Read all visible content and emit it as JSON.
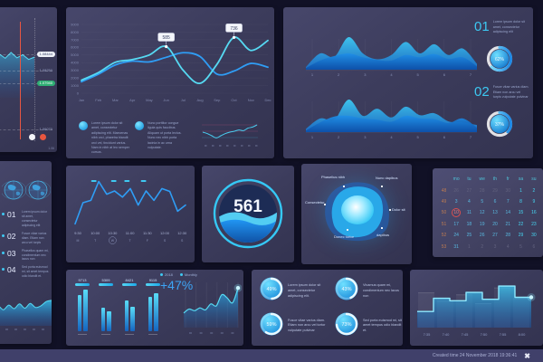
{
  "footer": {
    "text": "Created time 24 November 2018 19:36:41",
    "logo": "✖"
  },
  "panels": {
    "forex": {
      "prices": [
        {
          "label": "1.08444",
          "type": "pill-light",
          "y": 52
        },
        {
          "label": "1.08250",
          "type": "text",
          "y": 70
        },
        {
          "label": "1.07940",
          "type": "pill-green",
          "y": 84
        },
        {
          "label": "1.06070",
          "type": "text",
          "y": 135
        }
      ],
      "corner_label": "1.06"
    },
    "main": {
      "legends": [
        {
          "text": "Lorem ipsum dolor sit amet, consectetur adipiscing elit. Maecenas nibh orci, pharetra blandit orci vel, tincidunt varius. Nam in nibh at leo semper cursus."
        },
        {
          "text": "Nunc porttitor congue ligula quis faucibus. Aliquam ut porta lectus. Nunc nec nibh porta lacinia in ac urna vulputate."
        }
      ]
    },
    "hills": {
      "items": [
        {
          "num": "01",
          "text": "Lorem ipsum dolor sit amet, consectetur adipiscing elit",
          "pct": "62%"
        },
        {
          "num": "02",
          "text": "Fusce vitae varius diam. Etiam non arcu vel turpis vulputate pulvinar",
          "pct": "37%"
        }
      ]
    },
    "left": {
      "items": [
        {
          "num": "01",
          "text": "Lorem ipsum dolor sit amet, consectetur adipiscing elit"
        },
        {
          "num": "02",
          "text": "Fusce vitae varius diam. Etiam non arcu vel turpis"
        },
        {
          "num": "03",
          "text": "Phasellus quam mi, condimentum nec lacus non"
        },
        {
          "num": "04",
          "text": "Sed porta euismod mi, sit amet tempus odio blandit et."
        }
      ]
    },
    "gauge": {
      "value": "561"
    },
    "blob": {
      "labels": [
        {
          "text": "Phasellus nibh",
          "pos": "tl"
        },
        {
          "text": "Nunc dapibus",
          "pos": "tr"
        },
        {
          "text": "Consectetur",
          "pos": "l"
        },
        {
          "text": "Dolor sit",
          "pos": "r"
        },
        {
          "text": "Donec tortor",
          "pos": "bl"
        },
        {
          "text": "dapibus",
          "pos": "br"
        }
      ]
    },
    "calendar": {
      "headers": [
        "mo",
        "tu",
        "we",
        "th",
        "fr",
        "sa",
        "su"
      ],
      "weeks": [
        {
          "num": "48",
          "days": [
            "26",
            "27",
            "28",
            "29",
            "30",
            "1",
            "2"
          ],
          "muted": [
            1,
            1,
            1,
            1,
            1,
            0,
            0
          ]
        },
        {
          "num": "49",
          "days": [
            "3",
            "4",
            "5",
            "6",
            "7",
            "8",
            "9"
          ],
          "muted": [
            0,
            0,
            0,
            0,
            0,
            0,
            0
          ]
        },
        {
          "num": "50",
          "days": [
            "10",
            "11",
            "12",
            "13",
            "14",
            "15",
            "16"
          ],
          "muted": [
            0,
            0,
            0,
            0,
            0,
            0,
            0
          ]
        },
        {
          "num": "51",
          "days": [
            "17",
            "18",
            "19",
            "20",
            "21",
            "22",
            "23"
          ],
          "muted": [
            0,
            0,
            0,
            0,
            0,
            0,
            0
          ]
        },
        {
          "num": "52",
          "days": [
            "24",
            "25",
            "26",
            "27",
            "28",
            "29",
            "30"
          ],
          "muted": [
            0,
            0,
            0,
            0,
            0,
            0,
            0
          ]
        },
        {
          "num": "53",
          "days": [
            "31",
            "1",
            "2",
            "3",
            "4",
            "5",
            "6"
          ],
          "muted": [
            0,
            1,
            1,
            1,
            1,
            1,
            1
          ]
        }
      ],
      "selected_day": "10"
    },
    "bars47": {
      "legend": [
        "2018",
        "Monthly"
      ],
      "delta": "+47%",
      "groups": [
        {
          "label": "9713"
        },
        {
          "label": "5309"
        },
        {
          "label": "8421"
        },
        {
          "label": "9115"
        }
      ]
    },
    "rings": {
      "items": [
        {
          "pct": "49%",
          "text": "Lorem ipsum dolor sit amet, consectetur adipiscing elit."
        },
        {
          "pct": "43%",
          "text": "Vivamus quam mi, condimentum nec lacus non"
        },
        {
          "pct": "59%",
          "text": "Fusce vitae varius diam. Etiam non arcu vel tortor vulputate pulvinar"
        },
        {
          "pct": "73%",
          "text": "Sed porta euismod mi, sit amet tempus odio blandit et."
        }
      ]
    },
    "time": {
      "xticks": [
        "9:30",
        "10:00",
        "10:30",
        "11:00",
        "11:30",
        "12:00",
        "12:30"
      ],
      "days": [
        "M",
        "T",
        "W",
        "T",
        "F",
        "S",
        "S"
      ],
      "circled_index": 2
    },
    "steps": {
      "xticks": [
        "7:35",
        "7:40",
        "7:45",
        "7:50",
        "7:55",
        "8:00"
      ]
    }
  },
  "chart_data": [
    {
      "id": "main-line",
      "type": "line",
      "title": "",
      "x": [
        "Jan",
        "Feb",
        "Mar",
        "Apr",
        "May",
        "Jun",
        "Jul",
        "Aug",
        "Sep",
        "Oct",
        "Nov",
        "Dec"
      ],
      "ylim": [
        0,
        9000
      ],
      "yticks": [
        0,
        1000,
        2000,
        3000,
        4000,
        5000,
        6000,
        7000,
        8000,
        9000
      ],
      "grid": true,
      "series": [
        {
          "name": "series-a",
          "color": "#56d9f2",
          "values": [
            1700,
            2700,
            4050,
            4400,
            5000,
            6100,
            3000,
            1300,
            3800,
            7300,
            5600,
            6900
          ]
        },
        {
          "name": "series-b",
          "color": "#2f9df5",
          "values": [
            1500,
            2500,
            3700,
            4200,
            4100,
            4700,
            5300,
            4800,
            2500,
            2900,
            3900,
            3400
          ]
        }
      ],
      "annotations": [
        {
          "x": "Jun",
          "value": "585"
        },
        {
          "x": "Oct",
          "value": "736"
        }
      ]
    },
    {
      "id": "hills-top",
      "type": "area",
      "x": [
        1,
        2,
        3,
        4,
        5,
        6,
        7
      ],
      "series": [
        {
          "name": "back",
          "values": [
            0.08,
            0.5,
            0.4,
            1.0,
            0.5,
            0.32,
            0.45,
            0.85,
            0.5,
            0.78,
            0.45,
            0.65,
            0.18
          ]
        },
        {
          "name": "front",
          "values": [
            0.05,
            0.28,
            0.42,
            0.5,
            0.38,
            0.3,
            0.28,
            0.45,
            0.38,
            0.48,
            0.33,
            0.38,
            0.1
          ]
        }
      ]
    },
    {
      "id": "hills-bottom",
      "type": "area",
      "x": [
        1,
        2,
        3,
        4,
        5,
        6,
        7
      ],
      "series": [
        {
          "name": "back",
          "values": [
            0.1,
            0.42,
            0.38,
            1.0,
            0.5,
            0.72,
            0.45,
            0.78,
            0.52,
            0.58,
            0.33,
            0.3,
            0.22
          ]
        },
        {
          "name": "front",
          "values": [
            0.05,
            0.3,
            0.48,
            0.5,
            0.42,
            0.38,
            0.32,
            0.5,
            0.42,
            0.4,
            0.28,
            0.42,
            0.14
          ]
        }
      ]
    },
    {
      "id": "hill-donuts",
      "type": "donut",
      "values": [
        62,
        37
      ]
    },
    {
      "id": "time-line",
      "type": "line",
      "values": [
        0.05,
        0.5,
        0.55,
        0.95,
        0.68,
        0.75,
        0.62,
        0.8,
        0.45,
        0.75,
        0.55,
        0.8,
        0.74,
        0.32,
        0.45
      ],
      "markers_x": [
        0.17,
        0.35,
        0.47,
        0.62
      ]
    },
    {
      "id": "legend-spark",
      "type": "line",
      "values": [
        0.5,
        0.42,
        0.3,
        0.18,
        0.3,
        0.42,
        0.5,
        0.55,
        0.62,
        0.58,
        0.72,
        0.78,
        0.9
      ]
    },
    {
      "id": "left-area",
      "type": "area",
      "values": [
        0.35,
        0.6,
        0.45,
        0.65,
        0.5,
        0.7,
        0.52,
        0.72,
        0.55,
        0.62,
        0.8,
        0.85
      ]
    },
    {
      "id": "forex-area",
      "type": "area",
      "values": [
        0.55,
        0.7,
        0.5,
        0.78,
        0.6,
        0.85,
        0.62,
        0.75,
        0.55,
        0.65
      ]
    },
    {
      "id": "growth-area",
      "type": "area",
      "values": [
        0.32,
        0.42,
        0.38,
        0.45,
        0.4,
        0.55,
        0.5,
        0.78,
        0.7,
        0.58,
        0.95
      ]
    },
    {
      "id": "steps",
      "type": "step",
      "values": [
        0.33,
        0.6,
        0.55,
        0.72,
        0.58,
        0.85,
        0.62
      ],
      "ghost": [
        0.72,
        0.55,
        0.68,
        0.5,
        0.82,
        0.6
      ]
    },
    {
      "id": "bars-quad",
      "type": "bar",
      "pairs": [
        [
          40,
          46
        ],
        [
          26,
          22
        ],
        [
          34,
          27
        ],
        [
          38,
          42
        ]
      ]
    },
    {
      "id": "rings",
      "type": "donut",
      "values": [
        49,
        43,
        59,
        73
      ]
    },
    {
      "id": "gauge",
      "type": "gauge",
      "value": "561",
      "fill_pct": 45
    }
  ]
}
